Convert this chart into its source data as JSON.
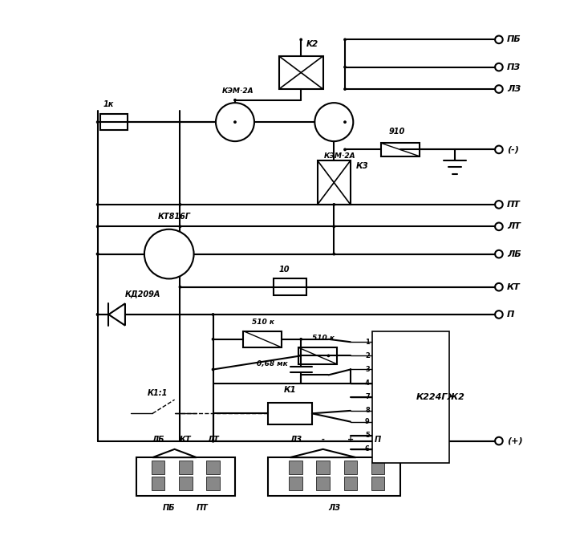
{
  "title": "",
  "background_color": "#ffffff",
  "line_color": "#000000",
  "line_width": 1.5,
  "fig_width": 7.23,
  "fig_height": 6.88,
  "labels": {
    "PB": "ПБ",
    "PZ": "ПЗ",
    "LZ": "ЛЗ",
    "minus": "(-)",
    "PT": "ПТ",
    "LT": "ЛТ",
    "LB": "ЛБ",
    "KT": "КТ",
    "P": "П",
    "plus": "(+)",
    "K2": "K2",
    "KEM2A_1": "КЭМ·2А",
    "KEM2A_2": "КЭМ·2А",
    "K3": "К3",
    "R910": "910",
    "R1K": "1к",
    "KT816G": "КТ816Г",
    "KD209A": "КД209А",
    "R510K_1": "510 к",
    "R510K_2": "510 к",
    "C068mk": "0,68 мк",
    "K224GG2": "К224ГЖ2",
    "K1": "К1",
    "K1_1": "К1:1",
    "R10": "10",
    "connector1_labels": [
      "ЛБ",
      "КТ",
      "ЛТ"
    ],
    "connector1_bottom": [
      "ПБ",
      "ПТ"
    ],
    "connector2_labels": [
      "ЛЗ",
      "-",
      "+",
      "П"
    ],
    "connector2_bottom": [
      "ЛЗ"
    ]
  }
}
